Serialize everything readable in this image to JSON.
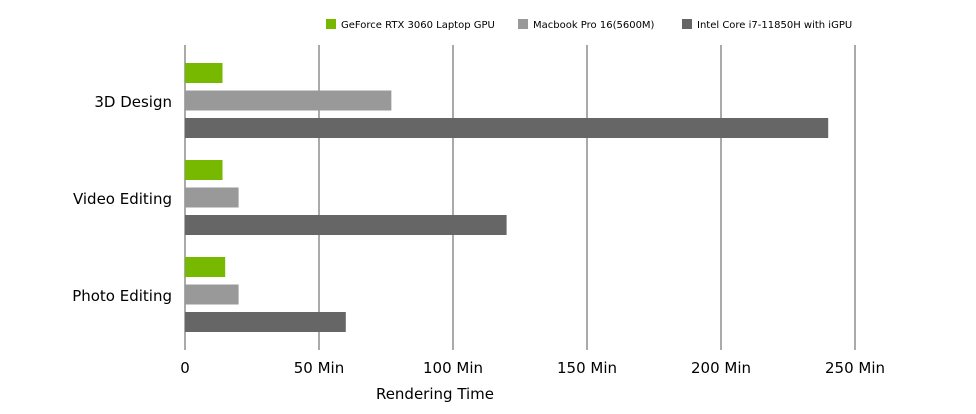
{
  "chart_data": {
    "type": "bar",
    "orientation": "horizontal",
    "categories": [
      "3D Design",
      "Video Editing",
      "Photo Editing"
    ],
    "series": [
      {
        "name": "GeForce RTX 3060 Laptop GPU",
        "color": "#76b900",
        "values": [
          14,
          14,
          15
        ]
      },
      {
        "name": "Macbook Pro 16(5600M)",
        "color": "#999999",
        "values": [
          77,
          20,
          20
        ]
      },
      {
        "name": "Intel Core i7-11850H with iGPU",
        "color": "#666666",
        "values": [
          240,
          120,
          60
        ]
      }
    ],
    "xlabel": "Rendering Time",
    "xlim": [
      0,
      250
    ],
    "xticks": [
      0,
      50,
      100,
      150,
      200,
      250
    ],
    "xtick_labels": [
      "0",
      "50 Min",
      "100 Min",
      "150 Min",
      "200 Min",
      "250 Min"
    ],
    "grid": "vertical",
    "legend": "top-right"
  }
}
